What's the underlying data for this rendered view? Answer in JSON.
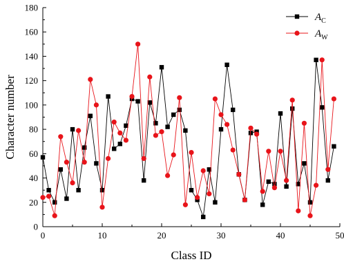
{
  "chart_data": {
    "type": "line",
    "xlabel": "Class ID",
    "ylabel": "Character number",
    "xlim": [
      0,
      50
    ],
    "ylim": [
      0,
      180
    ],
    "xticks": [
      0,
      10,
      20,
      30,
      40,
      50
    ],
    "yticks": [
      0,
      20,
      40,
      60,
      80,
      100,
      120,
      140,
      160,
      180
    ],
    "grid": false,
    "legend_position": "top-right",
    "x": [
      0,
      1,
      2,
      3,
      4,
      5,
      6,
      7,
      8,
      9,
      10,
      11,
      12,
      13,
      14,
      15,
      16,
      17,
      18,
      19,
      20,
      21,
      22,
      23,
      24,
      25,
      26,
      27,
      28,
      29,
      30,
      31,
      32,
      33,
      34,
      35,
      36,
      37,
      38,
      39,
      40,
      41,
      42,
      43,
      44,
      45,
      46,
      47,
      48,
      49
    ],
    "series": [
      {
        "legend_main": "A",
        "legend_sub": "C",
        "color": "#000000",
        "marker": "square",
        "values": [
          57,
          30,
          20,
          47,
          23,
          80,
          30,
          65,
          91,
          52,
          30,
          107,
          64,
          68,
          83,
          105,
          103,
          38,
          102,
          85,
          131,
          82,
          92,
          96,
          79,
          30,
          22,
          8,
          47,
          20,
          80,
          133,
          96,
          43,
          22,
          77,
          78,
          18,
          37,
          35,
          93,
          33,
          97,
          35,
          52,
          20,
          137,
          98,
          38,
          66
        ]
      },
      {
        "legend_main": "A",
        "legend_sub": "W",
        "color": "#e8141a",
        "marker": "circle",
        "values": [
          24,
          25,
          9,
          74,
          53,
          36,
          79,
          53,
          121,
          100,
          16,
          56,
          86,
          77,
          71,
          107,
          150,
          56,
          123,
          75,
          78,
          42,
          59,
          106,
          18,
          61,
          24,
          46,
          27,
          105,
          92,
          84,
          63,
          43,
          22,
          81,
          76,
          29,
          62,
          32,
          62,
          38,
          104,
          13,
          85,
          9,
          34,
          137,
          47,
          105
        ]
      }
    ]
  }
}
